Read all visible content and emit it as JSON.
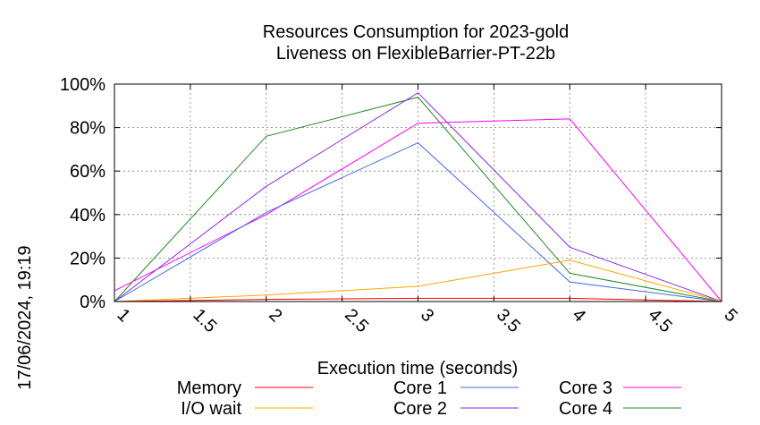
{
  "chart_data": {
    "type": "line",
    "title": "Resources Consumption for 2023-gold",
    "subtitle": "Liveness on FlexibleBarrier-PT-22b",
    "xlabel": "Execution time (seconds)",
    "ylabel": "",
    "xlim": [
      1,
      5
    ],
    "ylim": [
      0,
      100
    ],
    "x_ticks": [
      "1",
      "1.5",
      "2",
      "2.5",
      "3",
      "3.5",
      "4",
      "4.5",
      "5"
    ],
    "y_ticks": [
      "0%",
      "20%",
      "40%",
      "60%",
      "80%",
      "100%"
    ],
    "grid": true,
    "legend_position": "bottom",
    "side_note": "17/06/2024, 19:19",
    "x": [
      1,
      2,
      3,
      4,
      5
    ],
    "series": [
      {
        "name": "Memory",
        "color": "#ff0000",
        "values": [
          0,
          1,
          1.5,
          1.5,
          0
        ]
      },
      {
        "name": "I/O wait",
        "color": "#ffa500",
        "values": [
          0,
          3,
          7,
          19,
          0
        ]
      },
      {
        "name": "Core 1",
        "color": "#4169e1",
        "values": [
          0,
          41,
          73,
          9,
          0
        ]
      },
      {
        "name": "Core 2",
        "color": "#8a2be2",
        "values": [
          0,
          53,
          96,
          25,
          0
        ]
      },
      {
        "name": "Core 3",
        "color": "#ff00ff",
        "values": [
          5,
          40,
          82,
          84,
          0
        ]
      },
      {
        "name": "Core 4",
        "color": "#228b22",
        "values": [
          0,
          76,
          94,
          13,
          0
        ]
      }
    ]
  }
}
